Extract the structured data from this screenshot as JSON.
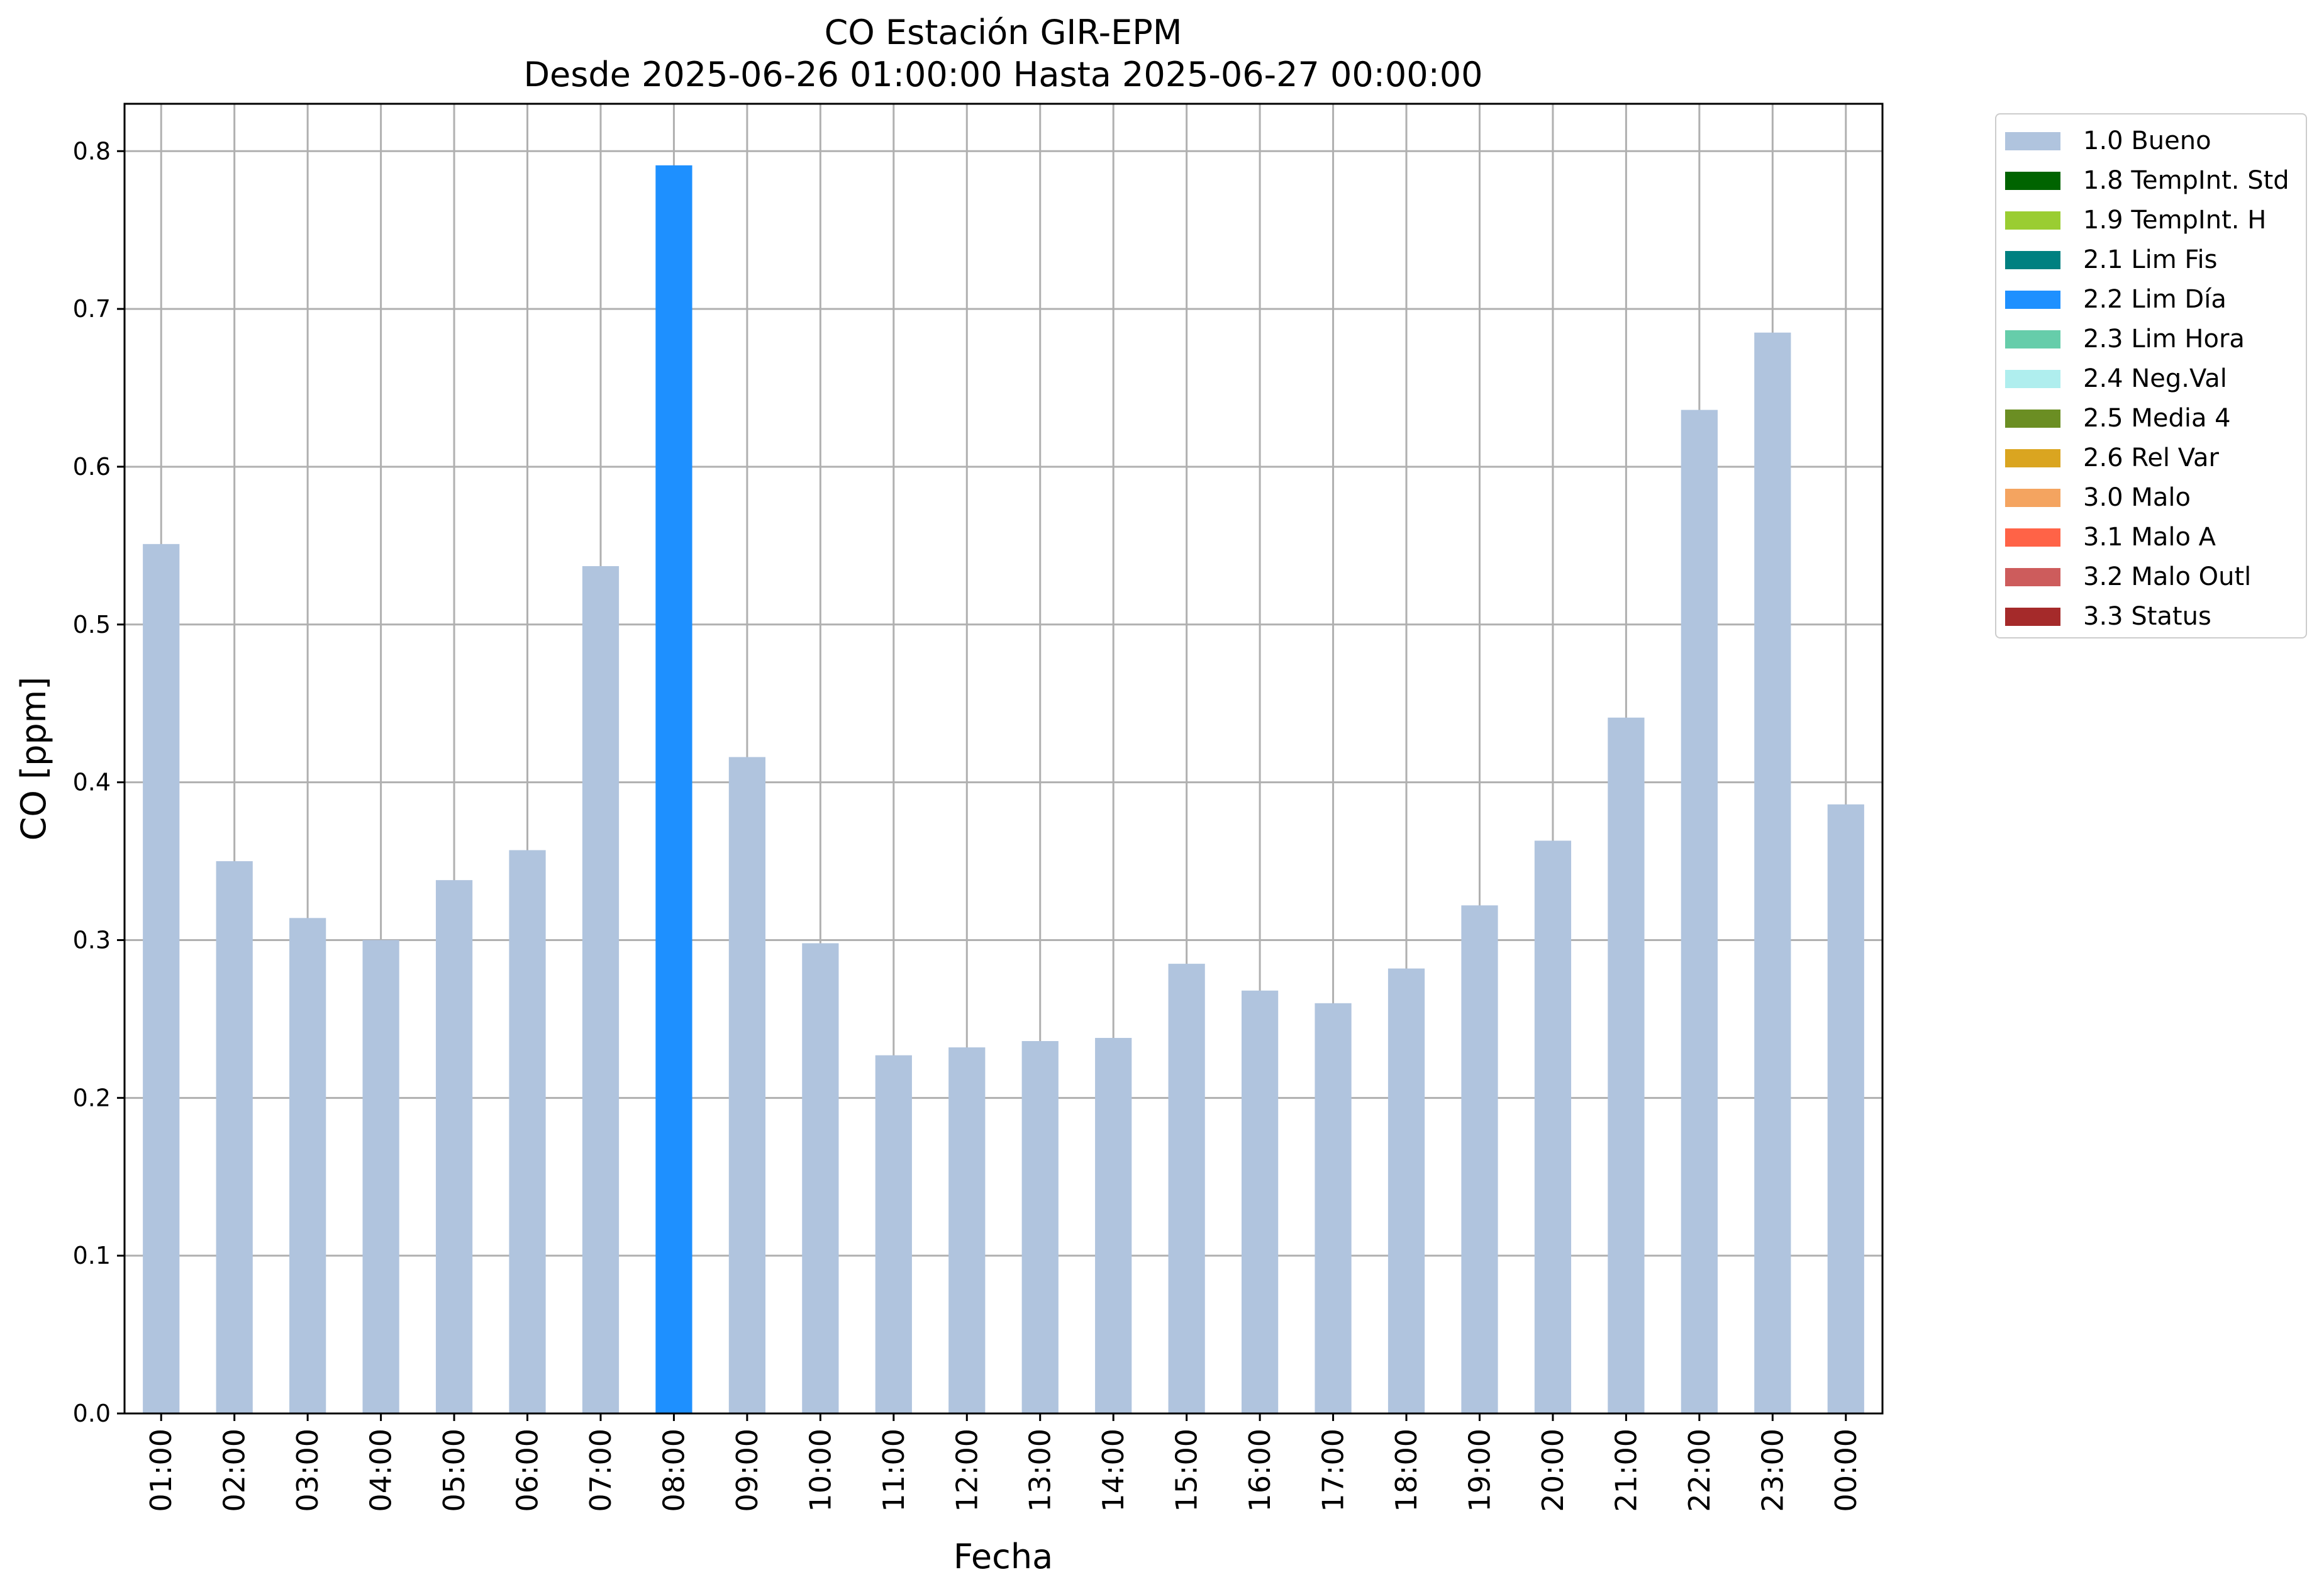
{
  "chart_data": {
    "type": "bar",
    "title": "CO Estación GIR-EPM",
    "subtitle": "Desde 2025-06-26 01:00:00 Hasta 2025-06-27 00:00:00",
    "xlabel": "Fecha",
    "ylabel": "CO [ppm]",
    "ylim": [
      0,
      0.83
    ],
    "yticks": [
      "0.0",
      "0.1",
      "0.2",
      "0.3",
      "0.4",
      "0.5",
      "0.6",
      "0.7",
      "0.8"
    ],
    "grid": true,
    "legend_position": "outside-top-right",
    "categories": [
      "01:00",
      "02:00",
      "03:00",
      "04:00",
      "05:00",
      "06:00",
      "07:00",
      "08:00",
      "09:00",
      "10:00",
      "11:00",
      "12:00",
      "13:00",
      "14:00",
      "15:00",
      "16:00",
      "17:00",
      "18:00",
      "19:00",
      "20:00",
      "21:00",
      "22:00",
      "23:00",
      "00:00"
    ],
    "values": [
      0.551,
      0.35,
      0.314,
      0.3,
      0.338,
      0.357,
      0.537,
      0.791,
      0.416,
      0.298,
      0.227,
      0.232,
      0.236,
      0.238,
      0.285,
      0.268,
      0.26,
      0.282,
      0.322,
      0.363,
      0.441,
      0.636,
      0.685,
      0.386
    ],
    "flags": [
      "1.0 Bueno",
      "1.0 Bueno",
      "1.0 Bueno",
      "1.0 Bueno",
      "1.0 Bueno",
      "1.0 Bueno",
      "1.0 Bueno",
      "2.2 Lim Día",
      "1.0 Bueno",
      "1.0 Bueno",
      "1.0 Bueno",
      "1.0 Bueno",
      "1.0 Bueno",
      "1.0 Bueno",
      "1.0 Bueno",
      "1.0 Bueno",
      "1.0 Bueno",
      "1.0 Bueno",
      "1.0 Bueno",
      "1.0 Bueno",
      "1.0 Bueno",
      "1.0 Bueno",
      "1.0 Bueno",
      "1.0 Bueno"
    ],
    "legend": [
      {
        "label": "1.0 Bueno",
        "color": "#b0c4de"
      },
      {
        "label": "1.8 TempInt. Std",
        "color": "#006400"
      },
      {
        "label": "1.9 TempInt. H",
        "color": "#9acd32"
      },
      {
        "label": "2.1 Lim Fis",
        "color": "#008080"
      },
      {
        "label": "2.2 Lim Día",
        "color": "#1e90ff"
      },
      {
        "label": "2.3 Lim Hora",
        "color": "#66cdaa"
      },
      {
        "label": "2.4 Neg.Val",
        "color": "#afeeee"
      },
      {
        "label": "2.5 Media 4",
        "color": "#6b8e23"
      },
      {
        "label": "2.6 Rel Var",
        "color": "#daa520"
      },
      {
        "label": "3.0 Malo",
        "color": "#f4a460"
      },
      {
        "label": "3.1 Malo A",
        "color": "#ff6347"
      },
      {
        "label": "3.2 Malo Outl",
        "color": "#cd5c5c"
      },
      {
        "label": "3.3 Status",
        "color": "#a52a2a"
      }
    ]
  }
}
